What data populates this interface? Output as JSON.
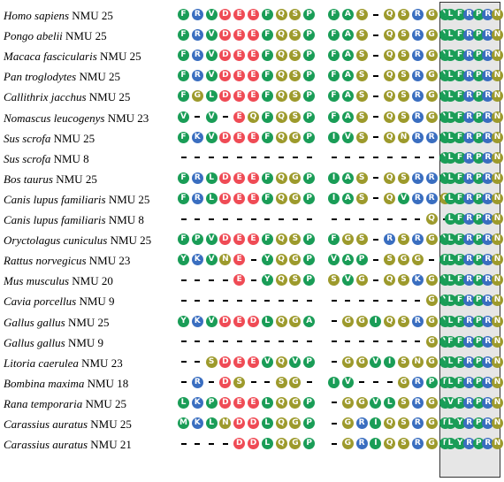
{
  "colors": {
    "green": "#1a9d57",
    "red": "#ef4b55",
    "olive": "#9d9a2c",
    "blue": "#3a6ec0",
    "box_fill": "#e6e6e6",
    "gap": "#000000"
  },
  "rows": [
    {
      "name": "Homo sapiens",
      "tag": "NMU 25",
      "a": "FRVDEEFQSP",
      "b": "FAS-QSRGYF",
      "c": "LFRPRN"
    },
    {
      "name": "Pongo abelii",
      "tag": "NMU 25",
      "a": "FRVDEEFQSP",
      "b": "FAS-QSRGYF",
      "c": "LFRPRN"
    },
    {
      "name": "Macaca fascicularis",
      "tag": "NMU 25",
      "a": "FRVDEEFQSP",
      "b": "FAS-QSRGYF",
      "c": "LFRPRN"
    },
    {
      "name": "Pan troglodytes",
      "tag": "NMU 25",
      "a": "FRVDEEFQSP",
      "b": "FAS-QSRGYF",
      "c": "LFRPRN"
    },
    {
      "name": "Callithrix jacchus",
      "tag": "NMU 25",
      "a": "FGLDEEFQSP",
      "b": "FAS-QSRGYF",
      "c": "LFRPRN"
    },
    {
      "name": "Nomascus leucogenys",
      "tag": "NMU 23",
      "a": "V-V-EQFQSP",
      "b": "FAS-QSRGYF",
      "c": "LFRPRN"
    },
    {
      "name": "Sus scrofa",
      "tag": "NMU 25",
      "a": "FKVDEEFQGP",
      "b": "IVS-QNRRYF",
      "c": "LFRPRN"
    },
    {
      "name": "Sus scrofa",
      "tag": "NMU 8",
      "a": "----------",
      "b": "--------YF",
      "c": "LFRPRN"
    },
    {
      "name": "Bos taurus",
      "tag": "NMU 25",
      "a": "FRLDEEFQGP",
      "b": "IAS-QSRRYF",
      "c": "LFRPRN"
    },
    {
      "name": "Canis lupus familiaris",
      "tag": "NMU 25",
      "a": "FRLDEEFQGP",
      "b": "IAS-QVRRQF",
      "c": "LFRPRN"
    },
    {
      "name": "Canis lupus familiaris",
      "tag": "NMU 8",
      "a": "----------",
      "b": "-------Q-F",
      "c": "LFRPRN"
    },
    {
      "name": "Oryctolagus cuniculus",
      "tag": "NMU 25",
      "a": "FPVDEEFQSP",
      "b": "FGS-RSRGYF",
      "c": "LFRPRN"
    },
    {
      "name": "Rattus norvegicus",
      "tag": "NMU 23",
      "a": "YKVNE-YQGP",
      "b": "VAP-SGG-FF",
      "c": "LFRPRN"
    },
    {
      "name": "Mus musculus",
      "tag": "NMU 20",
      "a": "----E-YQSP",
      "b": "SVG-QSKGYF",
      "c": "LFRPRN"
    },
    {
      "name": "Cavia porcellus",
      "tag": "NMU 9",
      "a": "----------",
      "b": "-------GYF",
      "c": "LFRPRN"
    },
    {
      "name": "Gallus gallus",
      "tag": "NMU 25",
      "a": "YKVDEDLQGA",
      "b": "-GGIQSRGYF",
      "c": "LFRPRN"
    },
    {
      "name": "Gallus gallus",
      "tag": "NMU 9",
      "a": "----------",
      "b": "-------GYF",
      "c": "FFRPRN"
    },
    {
      "name": "Litoria caerulea",
      "tag": "NMU 23",
      "a": "--SDEEVQVP",
      "b": "-GGVISNGYF",
      "c": "LFRPRN"
    },
    {
      "name": "Bombina maxima",
      "tag": "NMU 18",
      "a": "-R-DS--SG-",
      "b": "IV---GRPFF",
      "c": "LFRPRN"
    },
    {
      "name": "Rana temporaria",
      "tag": "NMU 25",
      "a": "LKPDEELQGP",
      "b": "-GGVLSRGYF",
      "c": "VFRPRN"
    },
    {
      "name": "Carassius auratus",
      "tag": "NMU 25",
      "a": "MKLNDDLQGP",
      "b": "-GRIQSRGFF",
      "c": "LYRPRN"
    },
    {
      "name": "Carassius auratus",
      "tag": "NMU 21",
      "a": "----DDLQGP",
      "b": "-GRIQSRGFF",
      "c": "LYRPRN"
    }
  ]
}
